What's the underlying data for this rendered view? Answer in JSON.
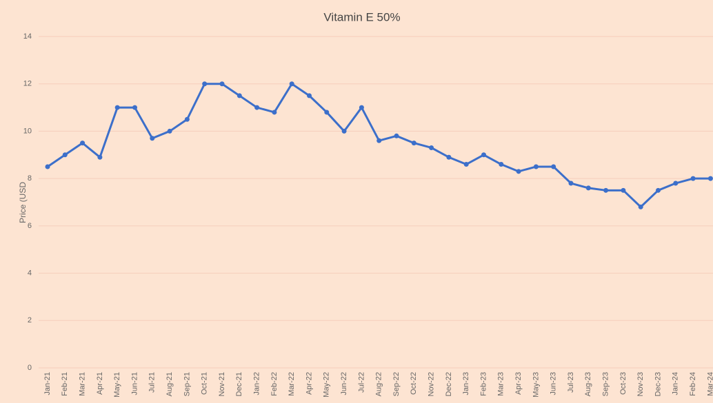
{
  "chart_data": {
    "type": "line",
    "title": "Vitamin E 50%",
    "y_label": "Price (USD",
    "categories": [
      "Jan-21",
      "Feb-21",
      "Mar-21",
      "Apr-21",
      "May-21",
      "Jun-21",
      "Jul-21",
      "Aug-21",
      "Sep-21",
      "Oct-21",
      "Nov-21",
      "Dec-21",
      "Jan-22",
      "Feb-22",
      "Mar-22",
      "Apr-22",
      "May-22",
      "Jun-22",
      "Jul-22",
      "Aug-22",
      "Sep-22",
      "Oct-22",
      "Nov-22",
      "Dec-22",
      "Jan-23",
      "Feb-23",
      "Mar-23",
      "Apr-23",
      "May-23",
      "Jun-23",
      "Jul-23",
      "Aug-23",
      "Sep-23",
      "Oct-23",
      "Nov-23",
      "Dec-23",
      "Jan-24",
      "Feb-24",
      "Mar-24"
    ],
    "values": [
      8.5,
      9.0,
      9.5,
      8.9,
      11,
      11,
      9.7,
      10,
      10.5,
      12,
      12,
      11.5,
      11,
      10.8,
      12,
      11.5,
      10.8,
      10,
      11,
      9.6,
      9.8,
      9.5,
      9.3,
      8.9,
      8.6,
      9.0,
      8.6,
      8.3,
      8.5,
      8.5,
      7.8,
      7.6,
      7.5,
      7.5,
      6.8,
      7.5,
      7.8,
      8.0,
      8.0
    ],
    "color": "#3c6fca",
    "ylim": [
      0,
      14
    ],
    "yticks": [
      0,
      2,
      4,
      6,
      8,
      10,
      12,
      14
    ],
    "grid": true
  }
}
